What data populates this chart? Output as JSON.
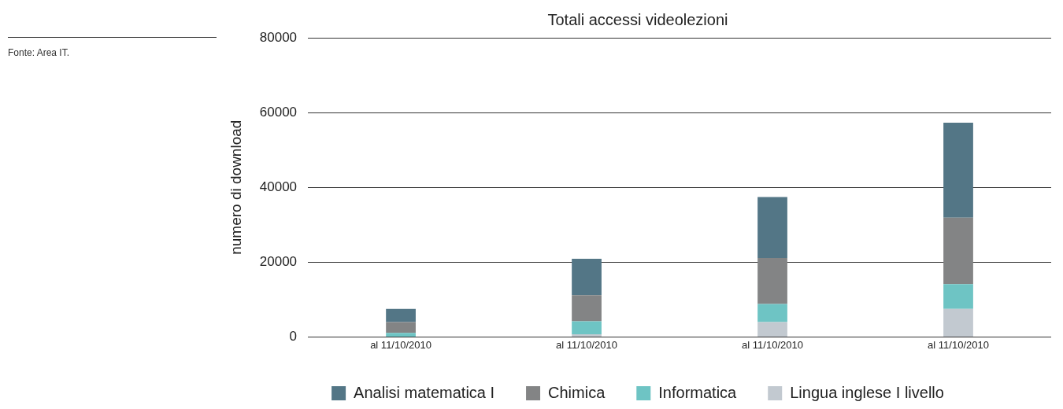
{
  "chart_data": {
    "type": "bar",
    "title": "Totali accessi videolezioni",
    "ylabel": "numero di download",
    "annotations": [
      "Fonte: Area IT."
    ],
    "categories": [
      "al 11/10/2010",
      "al 11/10/2010",
      "al 11/10/2010",
      "al 11/10/2010"
    ],
    "stacked": true,
    "ylim": [
      0,
      80000
    ],
    "yticks": [
      0,
      20000,
      40000,
      60000,
      80000
    ],
    "grid": "y",
    "legend": "bottom",
    "series": [
      {
        "name": "Lingua inglese I livello",
        "color": "#c2c9d0",
        "values": [
          0,
          700,
          4000,
          7500
        ]
      },
      {
        "name": "Informatica",
        "color": "#6ec4c4",
        "values": [
          1100,
          3500,
          4800,
          6600
        ]
      },
      {
        "name": "Chimica",
        "color": "#838485",
        "values": [
          2900,
          7000,
          12300,
          17800
        ]
      },
      {
        "name": "Analisi matematica I",
        "color": "#537686",
        "values": [
          3500,
          9700,
          16300,
          25400
        ]
      }
    ]
  }
}
